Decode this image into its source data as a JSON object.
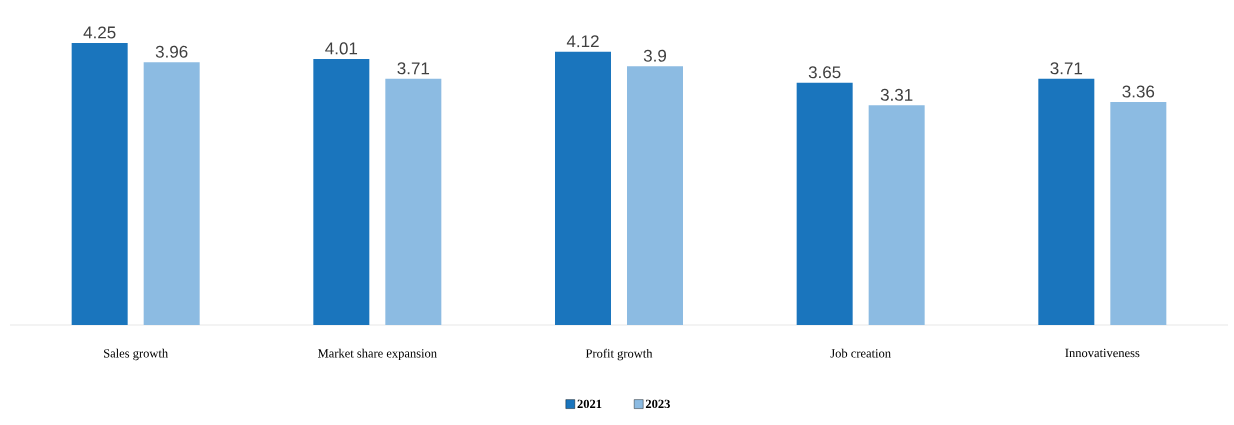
{
  "chart_data": {
    "type": "bar",
    "categories": [
      "Sales growth",
      "Market share expansion",
      "Profit growth",
      "Job creation",
      "Innovativeness"
    ],
    "series": [
      {
        "name": "2021",
        "color": "#1a75bd",
        "values": [
          4.25,
          4.01,
          4.12,
          3.65,
          3.71
        ],
        "value_labels": [
          "4.25",
          "4.01",
          "4.12",
          "3.65",
          "3.71"
        ]
      },
      {
        "name": "2023",
        "color": "#8cbbe2",
        "values": [
          3.96,
          3.71,
          3.9,
          3.31,
          3.36
        ],
        "value_labels": [
          "3.96",
          "3.71",
          "3.9",
          "3.31",
          "3.36"
        ]
      }
    ],
    "ylim": [
      0,
      4.25
    ],
    "tick_labels": "x",
    "legend": "bottom"
  }
}
